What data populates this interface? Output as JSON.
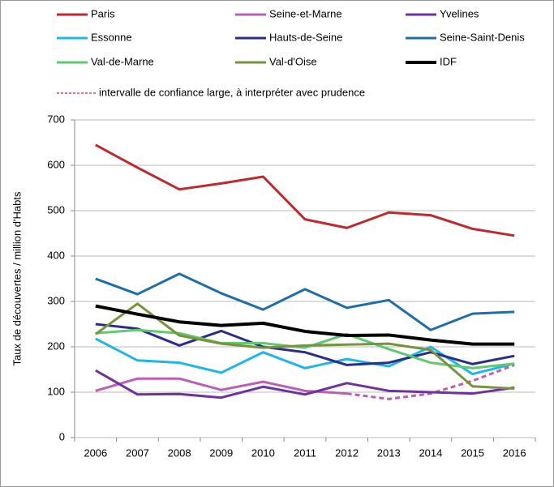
{
  "chart_data": {
    "type": "line",
    "y_label": "Taux de découvertes / million d'Habts",
    "confidence_note": "intervalle de confiance large,  à interpréter avec prudence",
    "confidence_color": "#d0407a",
    "categories": [
      "2006",
      "2007",
      "2008",
      "2009",
      "2010",
      "2011",
      "2012",
      "2013",
      "2014",
      "2015",
      "2016"
    ],
    "ylim": [
      0,
      700
    ],
    "yticks": [
      0,
      100,
      200,
      300,
      400,
      500,
      600,
      700
    ],
    "grid": true,
    "series": [
      {
        "name": "Paris",
        "color": "#c0282d",
        "values": [
          645,
          595,
          547,
          560,
          575,
          481,
          462,
          496,
          490,
          460,
          445
        ]
      },
      {
        "name": "Seine-et-Marne",
        "color": "#bb5fb5",
        "values": [
          103,
          130,
          130,
          105,
          123,
          103,
          97,
          85,
          97,
          125,
          160
        ],
        "dashed": [
          false,
          false,
          false,
          false,
          false,
          false,
          false,
          true,
          true,
          true,
          true
        ]
      },
      {
        "name": "Yvelines",
        "color": "#7030a0",
        "values": [
          148,
          95,
          96,
          88,
          112,
          95,
          120,
          103,
          100,
          97,
          110
        ]
      },
      {
        "name": "Essonne",
        "color": "#1fb5e8",
        "values": [
          218,
          170,
          165,
          143,
          188,
          153,
          173,
          157,
          200,
          140,
          163
        ]
      },
      {
        "name": "Hauts-de-Seine",
        "color": "#2b2d8c",
        "values": [
          250,
          240,
          203,
          235,
          200,
          188,
          160,
          165,
          188,
          162,
          180
        ]
      },
      {
        "name": "Seine-Saint-Denis",
        "color": "#1f6ea8",
        "values": [
          350,
          316,
          361,
          318,
          282,
          327,
          286,
          303,
          237,
          273,
          277
        ]
      },
      {
        "name": "Val-de-Marne",
        "color": "#5fc870",
        "values": [
          230,
          237,
          230,
          208,
          208,
          198,
          228,
          195,
          165,
          153,
          163
        ]
      },
      {
        "name": "Val-d'Oise",
        "color": "#77933c",
        "values": [
          228,
          295,
          225,
          207,
          198,
          203,
          205,
          207,
          193,
          113,
          108
        ]
      },
      {
        "name": "IDF",
        "color": "#000000",
        "values": [
          290,
          272,
          255,
          247,
          252,
          234,
          225,
          226,
          215,
          206,
          206
        ]
      }
    ]
  }
}
